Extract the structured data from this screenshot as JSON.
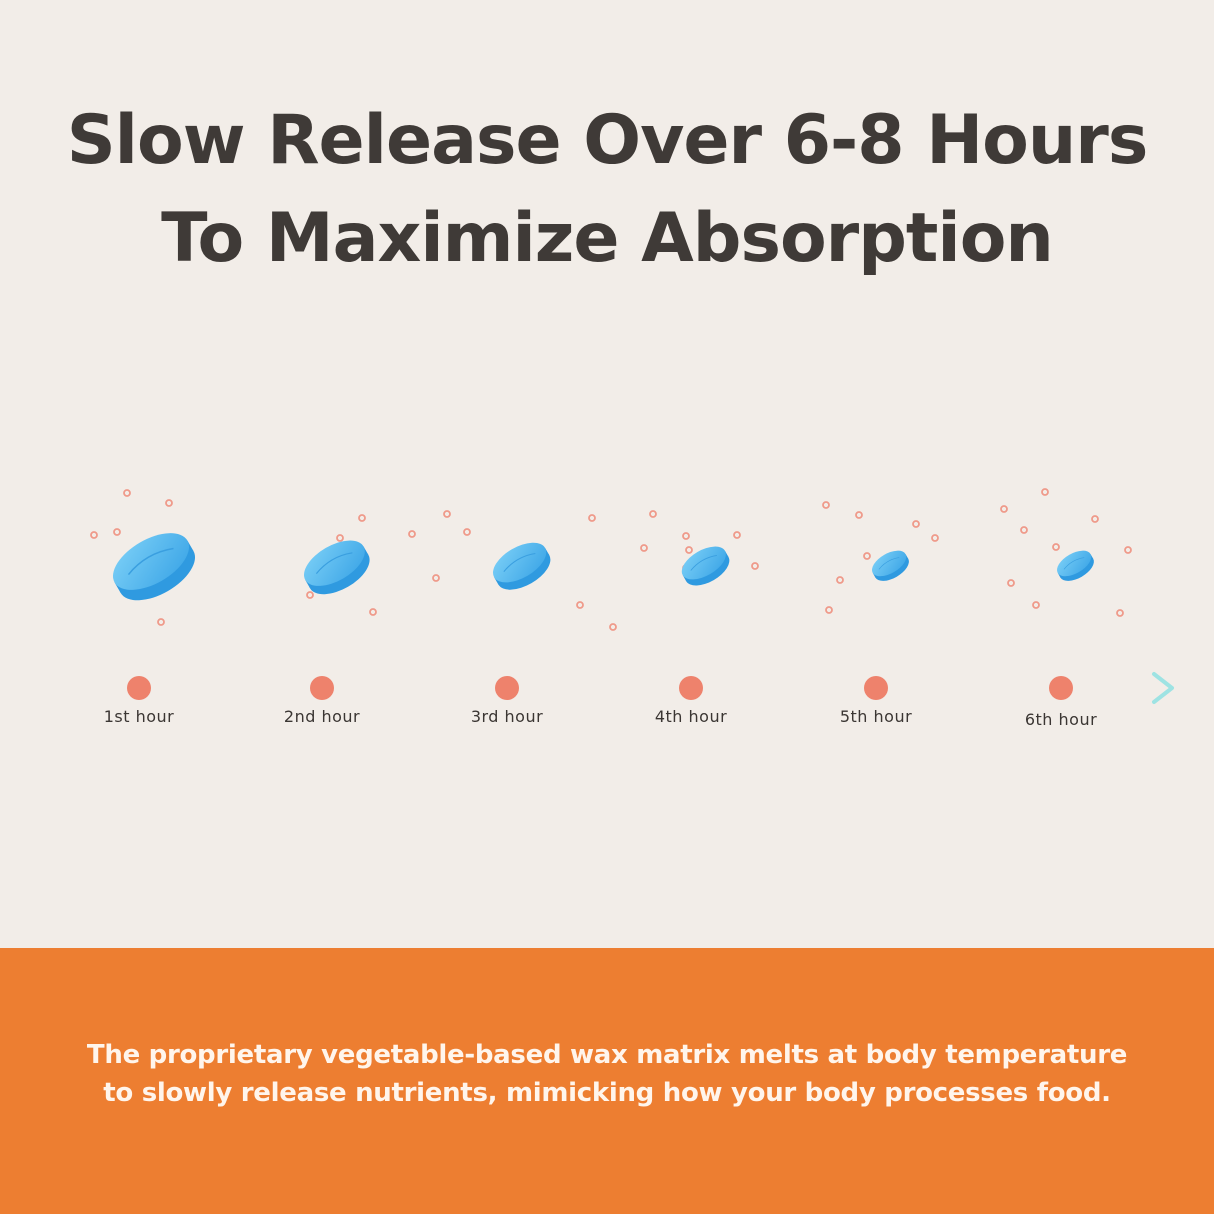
{
  "title": {
    "line1": "Slow Release Over 6-8 Hours",
    "line2": "To Maximize Absorption"
  },
  "timeline": {
    "stages": [
      {
        "label": "1st hour",
        "tablet_size": 1.0
      },
      {
        "label": "2nd hour",
        "tablet_size": 0.8
      },
      {
        "label": "3rd hour",
        "tablet_size": 0.7
      },
      {
        "label": "4th hour",
        "tablet_size": 0.58
      },
      {
        "label": "5th hour",
        "tablet_size": 0.45
      }
    ],
    "last_stage": {
      "label": "6th hour",
      "tablet_size": 0.45
    },
    "colors": {
      "line_start": "#5aa9e6",
      "line_end": "#9ee3e3",
      "dot": "#ee826c",
      "tablet": "#4db3ec",
      "particle": "#ef9a8a"
    }
  },
  "footer": {
    "line1": "The proprietary vegetable-based wax matrix melts at body temperature",
    "line2": "to slowly release nutrients, mimicking how your body processes food.",
    "background": "#ed7e31"
  }
}
